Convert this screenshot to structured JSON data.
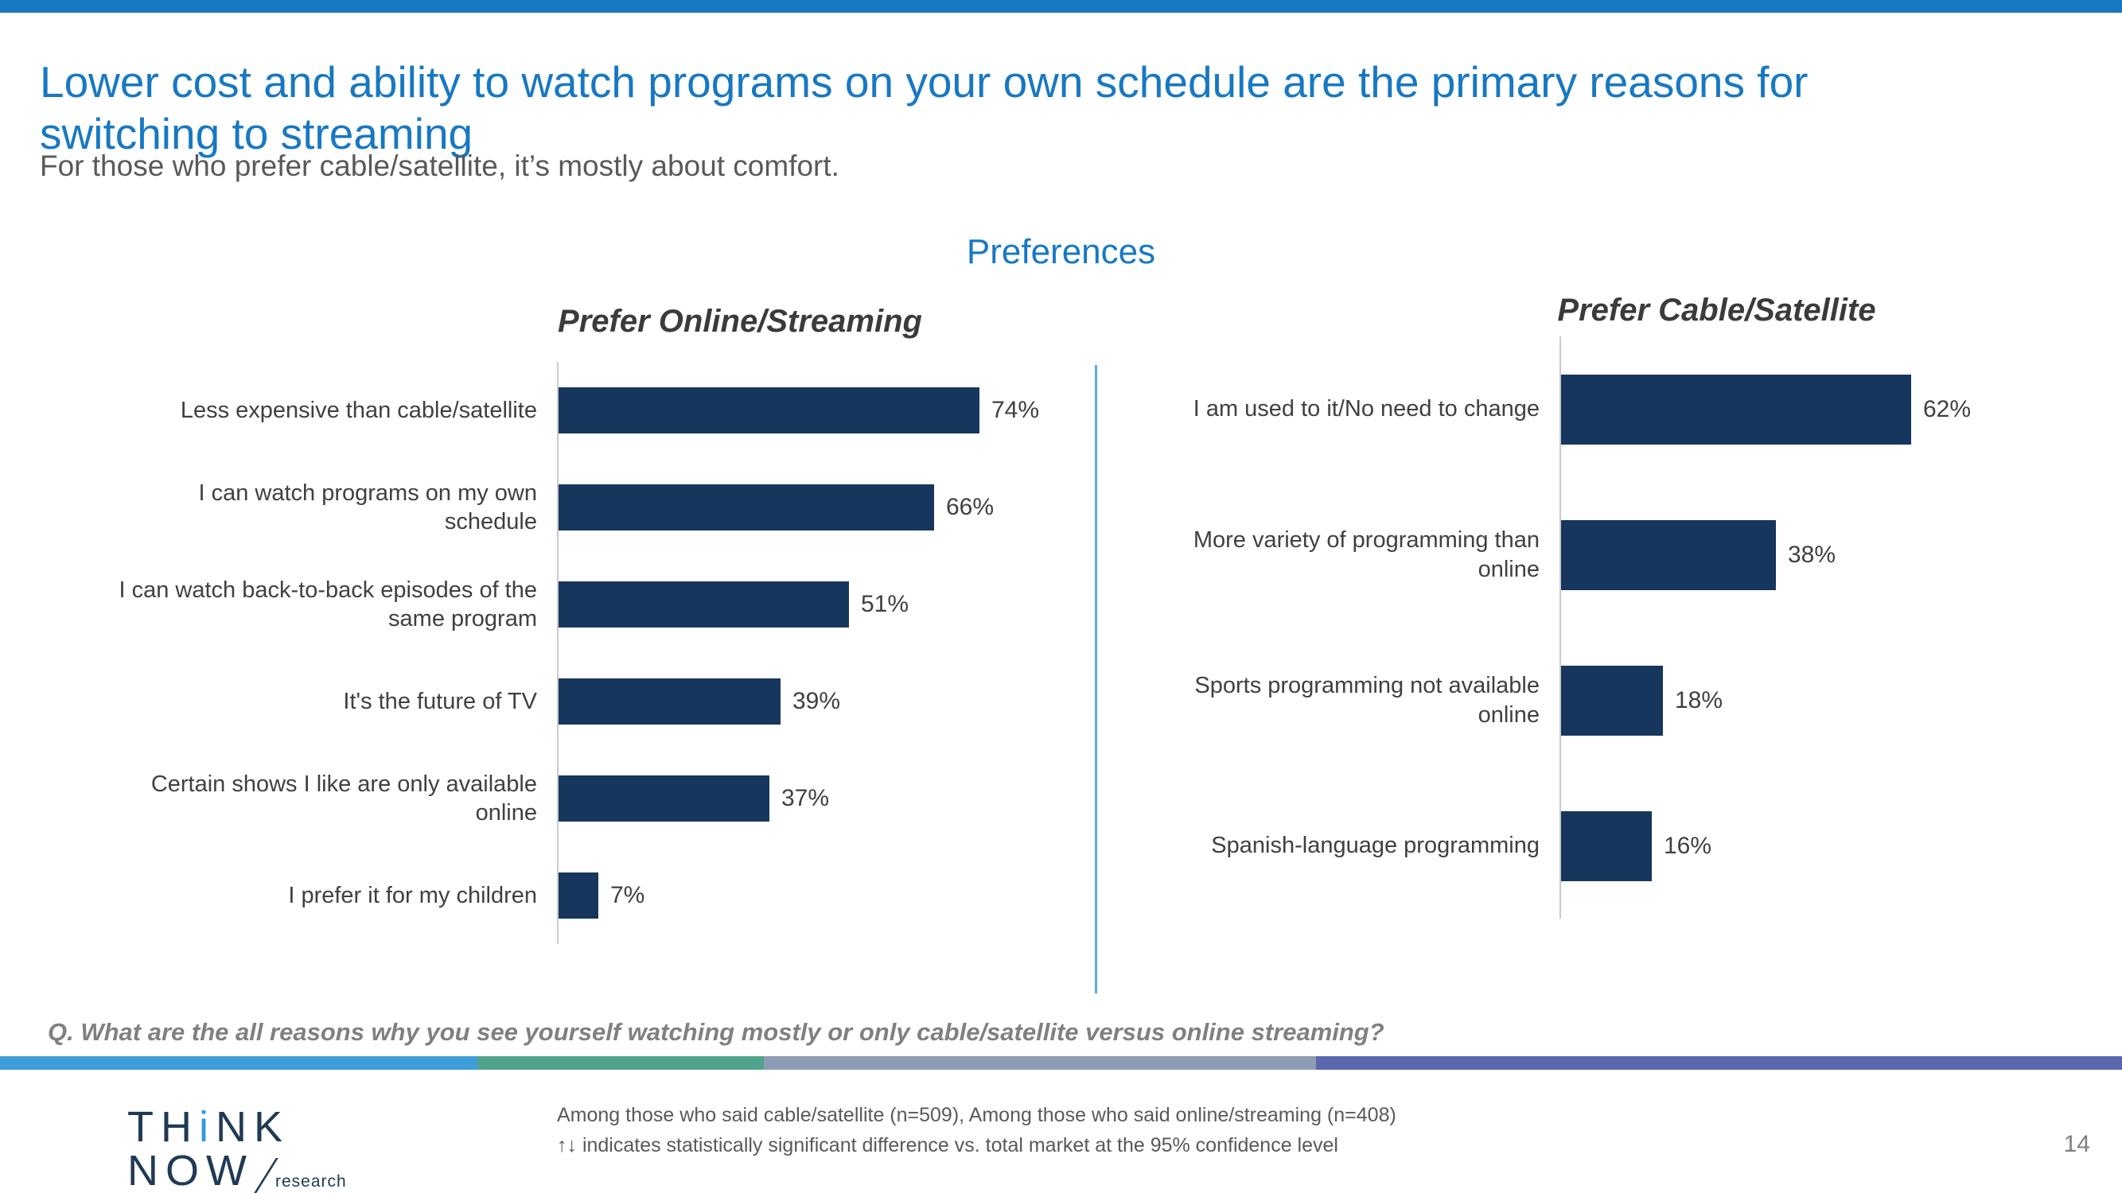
{
  "slide": {
    "title": "Lower cost and ability to watch programs on your own schedule are the primary reasons for switching to streaming",
    "subtitle": "For those who prefer cable/satellite, it’s mostly about comfort.",
    "section_heading": "Preferences",
    "question": "Q. What are the all reasons why you see yourself watching mostly or only cable/satellite versus online streaming?",
    "footnotes": [
      "Among those who said cable/satellite (n=509), Among those who said online/streaming (n=408)",
      "↑↓ indicates statistically significant difference vs. total market at the 95% confidence level"
    ],
    "page_number": "14"
  },
  "logo": {
    "part1": "TH",
    "dot_i": "i",
    "part2": "NK",
    "line2": "NOW",
    "research": "research"
  },
  "colors": {
    "accent_blue": "#1878C2",
    "bar_navy": "#17365D",
    "divider_blue": "#62A8D9",
    "bottom_bar_segments": [
      {
        "color": "#3E9ED9",
        "width": "22.5%"
      },
      {
        "color": "#4FA38C",
        "width": "13.5%"
      },
      {
        "color": "#8D9CB4",
        "width": "26%"
      },
      {
        "color": "#5A67AE",
        "width": "38%"
      }
    ]
  },
  "chart_data": [
    {
      "type": "bar",
      "orientation": "horizontal",
      "title": "Prefer Online/Streaming",
      "categories": [
        "Less expensive than cable/satellite",
        "I can watch programs on my own schedule",
        "I can watch back-to-back episodes of the same program",
        "It's the future of TV",
        "Certain shows I like are only available online",
        "I prefer it for my children"
      ],
      "values": [
        74,
        66,
        51,
        39,
        37,
        7
      ],
      "value_labels": [
        "74%",
        "66%",
        "51%",
        "39%",
        "37%",
        "7%"
      ],
      "xlim": [
        0,
        100
      ],
      "grid": false,
      "bar_color": "#17365D"
    },
    {
      "type": "bar",
      "orientation": "horizontal",
      "title": "Prefer Cable/Satellite",
      "categories": [
        "I am used to it/No need to change",
        "More variety of programming than online",
        "Sports programming not available online",
        "Spanish-language programming"
      ],
      "values": [
        62,
        38,
        18,
        16
      ],
      "value_labels": [
        "62%",
        "38%",
        "18%",
        "16%"
      ],
      "xlim": [
        0,
        100
      ],
      "grid": false,
      "bar_color": "#17365D"
    }
  ]
}
